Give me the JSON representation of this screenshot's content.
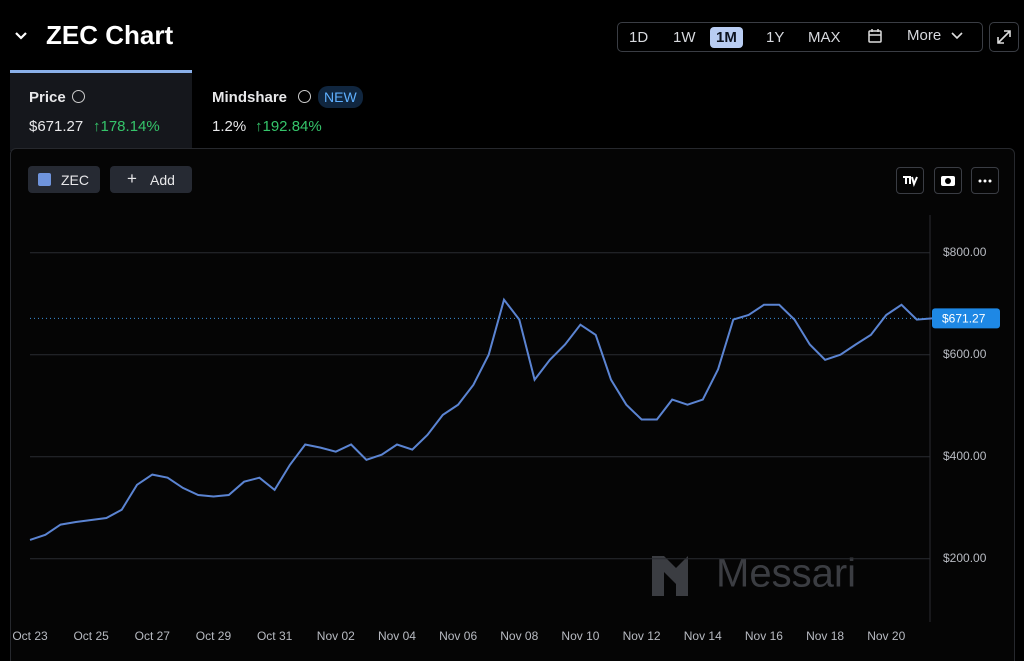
{
  "header": {
    "title": "ZEC Chart",
    "ranges": [
      "1D",
      "1W",
      "1M",
      "1Y",
      "MAX"
    ],
    "active_range": 2,
    "more": "More"
  },
  "tabs": [
    {
      "label": "Price",
      "value": "$671.27",
      "change": "↑178.14%"
    },
    {
      "label": "Mindshare",
      "badge": "NEW",
      "value": "1.2%",
      "change": "↑192.84%"
    }
  ],
  "toolbar": {
    "add": "Add"
  },
  "watermark": "Messari",
  "chart_data": {
    "type": "line",
    "categories": [
      "Oct 23",
      null,
      null,
      null,
      "Oct 25",
      null,
      null,
      null,
      "Oct 27",
      null,
      null,
      null,
      "Oct 29",
      null,
      null,
      null,
      "Oct 31",
      null,
      null,
      null,
      "Nov 02",
      null,
      null,
      null,
      "Nov 04",
      null,
      null,
      null,
      "Nov 06",
      null,
      null,
      null,
      "Nov 08",
      null,
      null,
      null,
      "Nov 10",
      null,
      null,
      null,
      "Nov 12",
      null,
      null,
      null,
      "Nov 14",
      null,
      null,
      null,
      "Nov 16",
      null,
      null,
      null,
      "Nov 18",
      null,
      null,
      null,
      "Nov 20",
      null,
      null,
      null
    ],
    "series": [
      {
        "name": "ZEC",
        "color": "#5b84d2",
        "values": [
          237,
          247,
          267,
          272,
          276,
          280,
          296,
          345,
          365,
          359,
          339,
          325,
          322,
          325,
          351,
          359,
          335,
          384,
          424,
          418,
          410,
          424,
          394,
          404,
          424,
          414,
          443,
          482,
          502,
          541,
          600,
          708,
          669,
          551,
          590,
          620,
          659,
          639,
          551,
          502,
          473,
          473,
          512,
          502,
          512,
          571,
          669,
          678,
          698,
          698,
          669,
          620,
          590,
          600,
          620,
          639,
          678,
          698,
          669,
          671.27
        ]
      }
    ],
    "ylim": [
      76,
      874
    ],
    "yticks": [
      {
        "value": 200,
        "label": "$200.00"
      },
      {
        "value": 400,
        "label": "$400.00"
      },
      {
        "value": 600,
        "label": "$600.00"
      },
      {
        "value": 800,
        "label": "$800.00"
      }
    ],
    "grid": true
  }
}
